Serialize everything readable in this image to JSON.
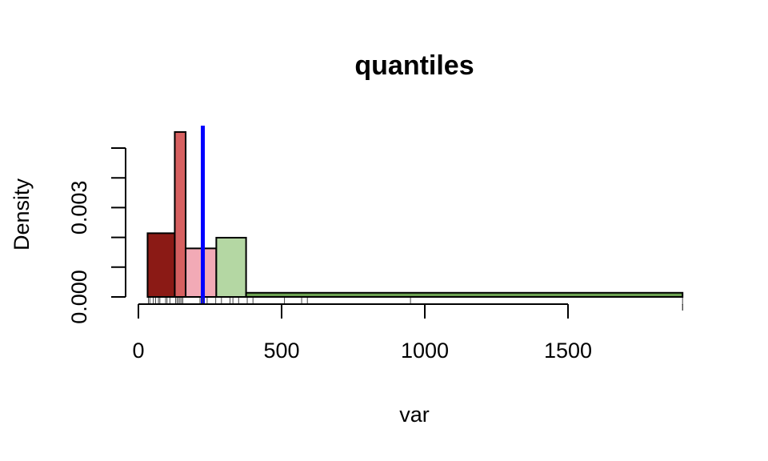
{
  "chart_data": {
    "type": "bar",
    "title": "quantiles",
    "xlabel": "var",
    "ylabel": "Density",
    "xlim": [
      0,
      1900
    ],
    "ylim": [
      0,
      0.005
    ],
    "x_ticks": [
      0,
      500,
      1000,
      1500
    ],
    "y_ticks": [
      0.0,
      0.001,
      0.002,
      0.003,
      0.004,
      0.005
    ],
    "y_tick_labels": [
      "0.000",
      "",
      "",
      "0.003",
      "",
      ""
    ],
    "grid": false,
    "bins": [
      {
        "from": 32,
        "to": 127,
        "density": 0.00214,
        "color": "#8b1a15"
      },
      {
        "from": 127,
        "to": 165,
        "density": 0.00554,
        "color": "#d66060"
      },
      {
        "from": 165,
        "to": 272,
        "density": 0.00163,
        "color": "#f2aab6"
      },
      {
        "from": 272,
        "to": 376,
        "density": 0.00199,
        "color": "#b4d7a3"
      },
      {
        "from": 376,
        "to": 1900,
        "density": 0.00014,
        "color": "#6ba050"
      }
    ],
    "reference_line": {
      "x": 225,
      "color": "#0000ff"
    },
    "rug": [
      35,
      40,
      52,
      60,
      70,
      75,
      95,
      100,
      110,
      130,
      135,
      140,
      145,
      150,
      155,
      215,
      225,
      240,
      270,
      290,
      320,
      330,
      350,
      380,
      400,
      510,
      570,
      590,
      950,
      1900
    ]
  }
}
